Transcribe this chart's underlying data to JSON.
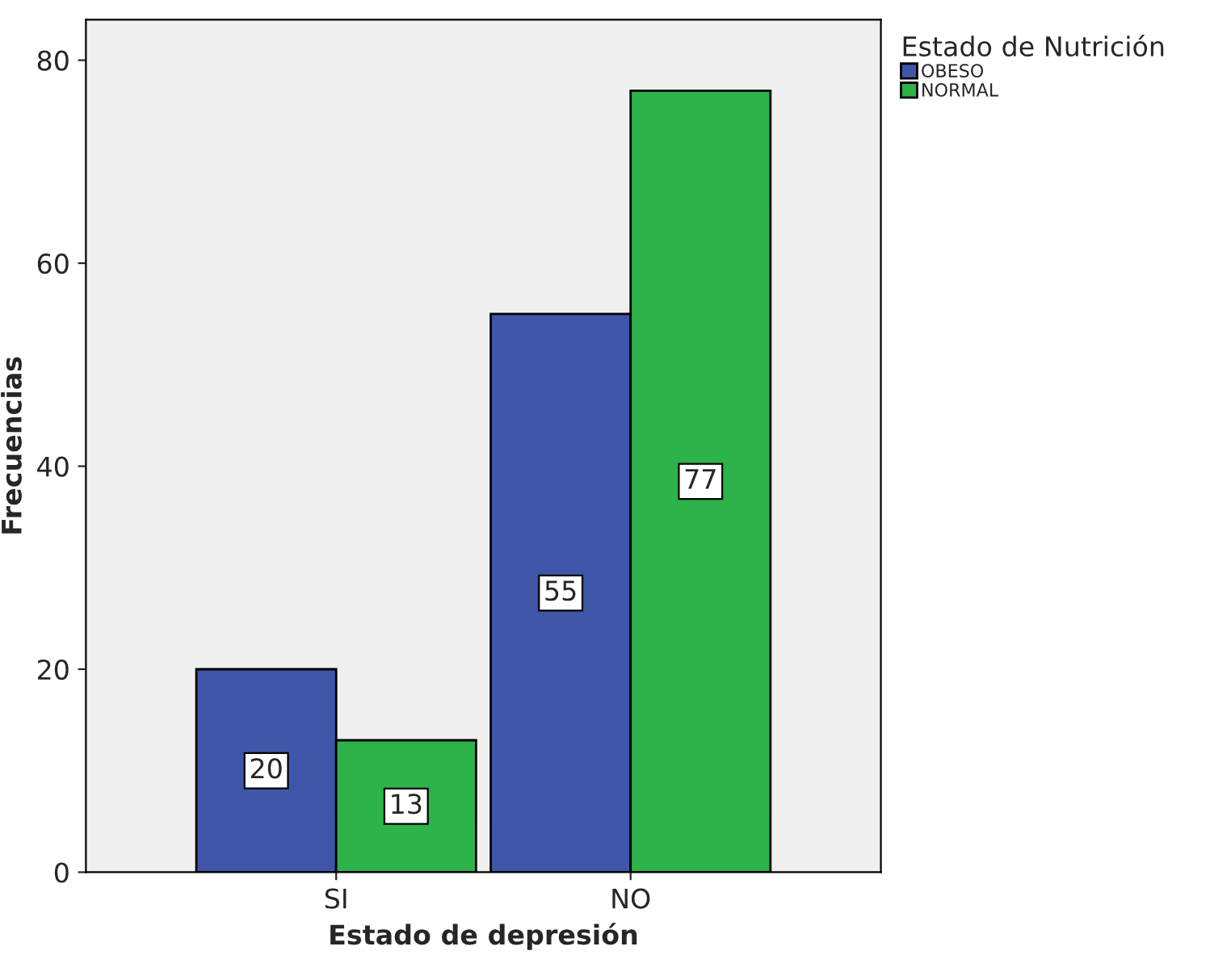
{
  "chart_data": {
    "type": "bar",
    "xlabel": "Estado de depresión",
    "ylabel": "Frecuencias",
    "legend_title": "Estado de Nutrición",
    "categories": [
      "SI",
      "NO"
    ],
    "series": [
      {
        "name": "OBESO",
        "color": "#3f56a8",
        "values": [
          20,
          55
        ]
      },
      {
        "name": "NORMAL",
        "color": "#2db34a",
        "values": [
          13,
          77
        ]
      }
    ],
    "ylim": [
      0,
      84
    ],
    "yticks": [
      0,
      20,
      40,
      60,
      80
    ],
    "grid": false,
    "legend": "right",
    "data_labels": true
  }
}
